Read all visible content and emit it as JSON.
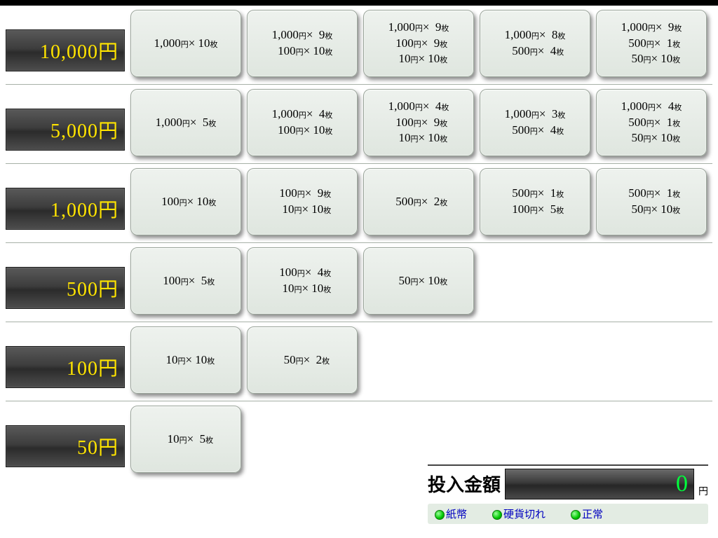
{
  "yen_unit": "円",
  "mai_unit": "枚",
  "rows": [
    {
      "denom": "10,000円",
      "options": [
        [
          [
            "1,000",
            "10"
          ]
        ],
        [
          [
            "1,000",
            "9"
          ],
          [
            "100",
            "10"
          ]
        ],
        [
          [
            "1,000",
            "9"
          ],
          [
            "100",
            "9"
          ],
          [
            "10",
            "10"
          ]
        ],
        [
          [
            "1,000",
            "8"
          ],
          [
            "500",
            "4"
          ]
        ],
        [
          [
            "1,000",
            "9"
          ],
          [
            "500",
            "1"
          ],
          [
            "50",
            "10"
          ]
        ]
      ]
    },
    {
      "denom": "5,000円",
      "options": [
        [
          [
            "1,000",
            "5"
          ]
        ],
        [
          [
            "1,000",
            "4"
          ],
          [
            "100",
            "10"
          ]
        ],
        [
          [
            "1,000",
            "4"
          ],
          [
            "100",
            "9"
          ],
          [
            "10",
            "10"
          ]
        ],
        [
          [
            "1,000",
            "3"
          ],
          [
            "500",
            "4"
          ]
        ],
        [
          [
            "1,000",
            "4"
          ],
          [
            "500",
            "1"
          ],
          [
            "50",
            "10"
          ]
        ]
      ]
    },
    {
      "denom": "1,000円",
      "options": [
        [
          [
            "100",
            "10"
          ]
        ],
        [
          [
            "100",
            "9"
          ],
          [
            "10",
            "10"
          ]
        ],
        [
          [
            "500",
            "2"
          ]
        ],
        [
          [
            "500",
            "1"
          ],
          [
            "100",
            "5"
          ]
        ],
        [
          [
            "500",
            "1"
          ],
          [
            "50",
            "10"
          ]
        ]
      ]
    },
    {
      "denom": "500円",
      "options": [
        [
          [
            "100",
            "5"
          ]
        ],
        [
          [
            "100",
            "4"
          ],
          [
            "10",
            "10"
          ]
        ],
        [
          [
            "50",
            "10"
          ]
        ]
      ]
    },
    {
      "denom": "100円",
      "options": [
        [
          [
            "10",
            "10"
          ]
        ],
        [
          [
            "50",
            "2"
          ]
        ]
      ]
    },
    {
      "denom": "50円",
      "options": [
        [
          [
            "10",
            "5"
          ]
        ]
      ]
    }
  ],
  "footer": {
    "amount_label": "投入金額",
    "amount_value": "0",
    "yen_suffix": "円",
    "status": [
      {
        "label": "紙幣"
      },
      {
        "label": "硬貨切れ"
      },
      {
        "label": "正常"
      }
    ]
  },
  "colors": {
    "denom_text": "#ffe400",
    "amount_text": "#00ff3c",
    "button_bg": "#e2e9e2",
    "status_text": "#0000c0",
    "led": "#00c800"
  }
}
